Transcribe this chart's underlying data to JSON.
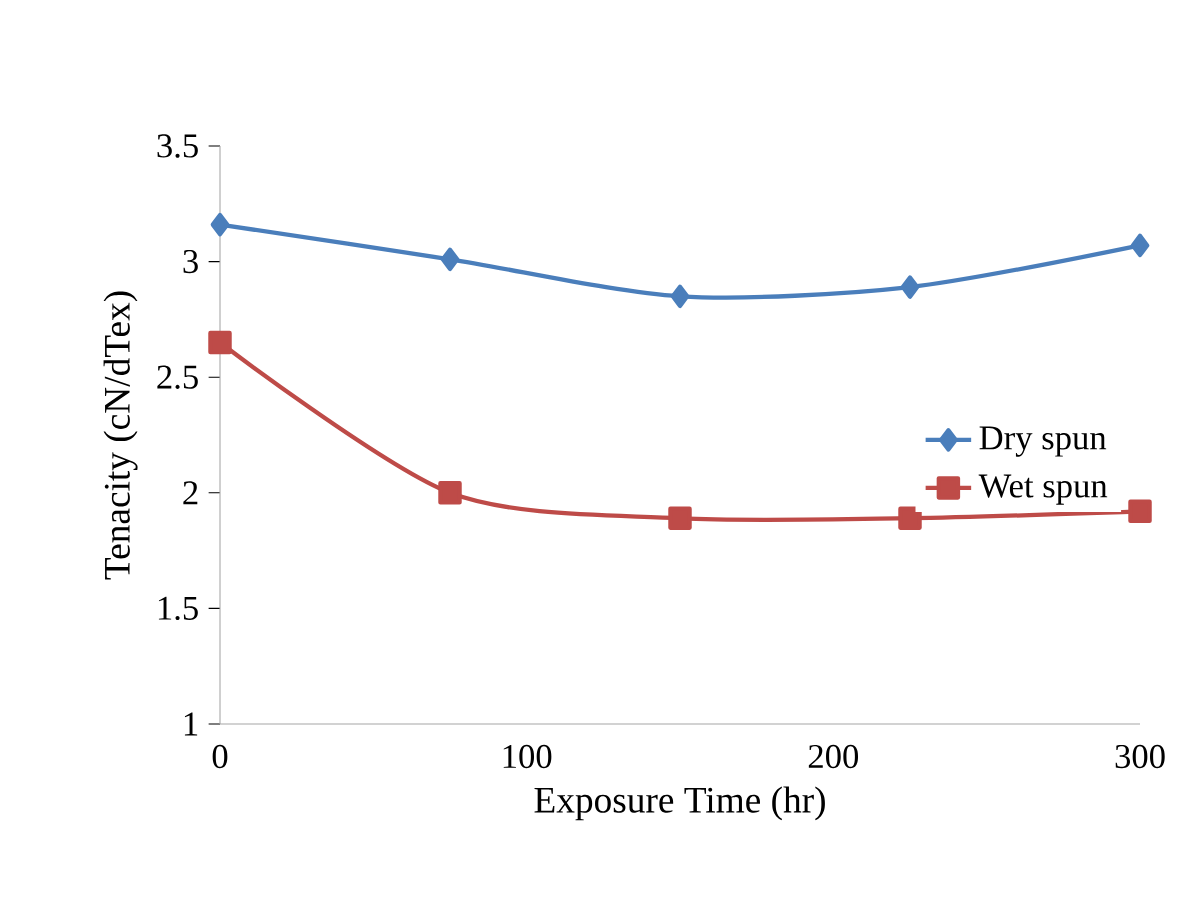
{
  "chart_data": {
    "type": "line",
    "xlabel": "Exposure Time (hr)",
    "ylabel": "Tenacity (cN/dTex)",
    "x": [
      0,
      75,
      150,
      225,
      300
    ],
    "series": [
      {
        "name": "Dry spun",
        "color": "#4a7ebb",
        "marker": "diamond",
        "values": [
          3.16,
          3.01,
          2.85,
          2.89,
          3.07
        ]
      },
      {
        "name": "Wet spun",
        "color": "#be4b48",
        "marker": "square",
        "values": [
          2.65,
          2.0,
          1.89,
          1.89,
          1.92
        ]
      }
    ],
    "xlim": [
      0,
      300
    ],
    "xticks": [
      0,
      100,
      200,
      300
    ],
    "ylim": [
      1,
      3.5
    ],
    "yticks": [
      1,
      1.5,
      2,
      2.5,
      3,
      3.5
    ],
    "legend": "right",
    "grid": false,
    "line_style": "solid"
  }
}
